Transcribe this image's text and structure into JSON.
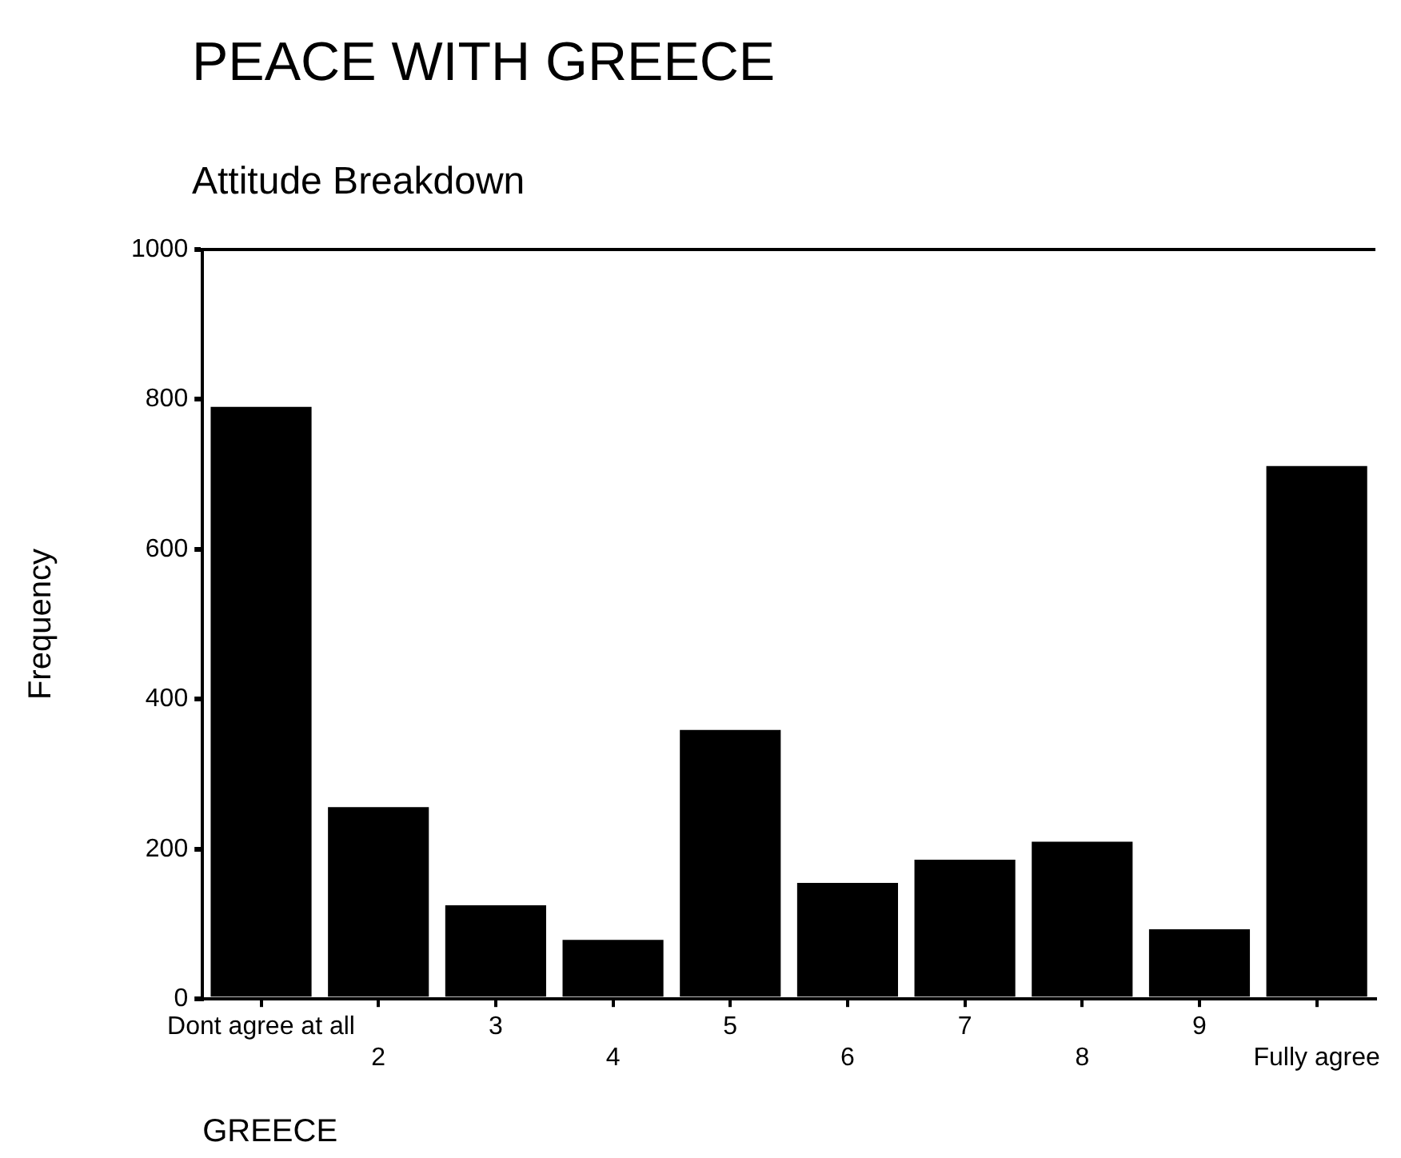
{
  "chart_data": {
    "type": "bar",
    "title": "PEACE WITH GREECE",
    "subtitle": "Attitude Breakdown",
    "xlabel": "GREECE",
    "ylabel": "Frequency",
    "categories": [
      "Dont agree at all",
      "2",
      "3",
      "4",
      "5",
      "6",
      "7",
      "8",
      "9",
      "Fully agree"
    ],
    "values": [
      790,
      256,
      125,
      79,
      359,
      155,
      186,
      210,
      93,
      711
    ],
    "color": "#000000",
    "ylim": [
      0,
      1000
    ],
    "yticks": [
      0,
      200,
      400,
      600,
      800,
      1000
    ],
    "grid": false,
    "legend": false
  }
}
